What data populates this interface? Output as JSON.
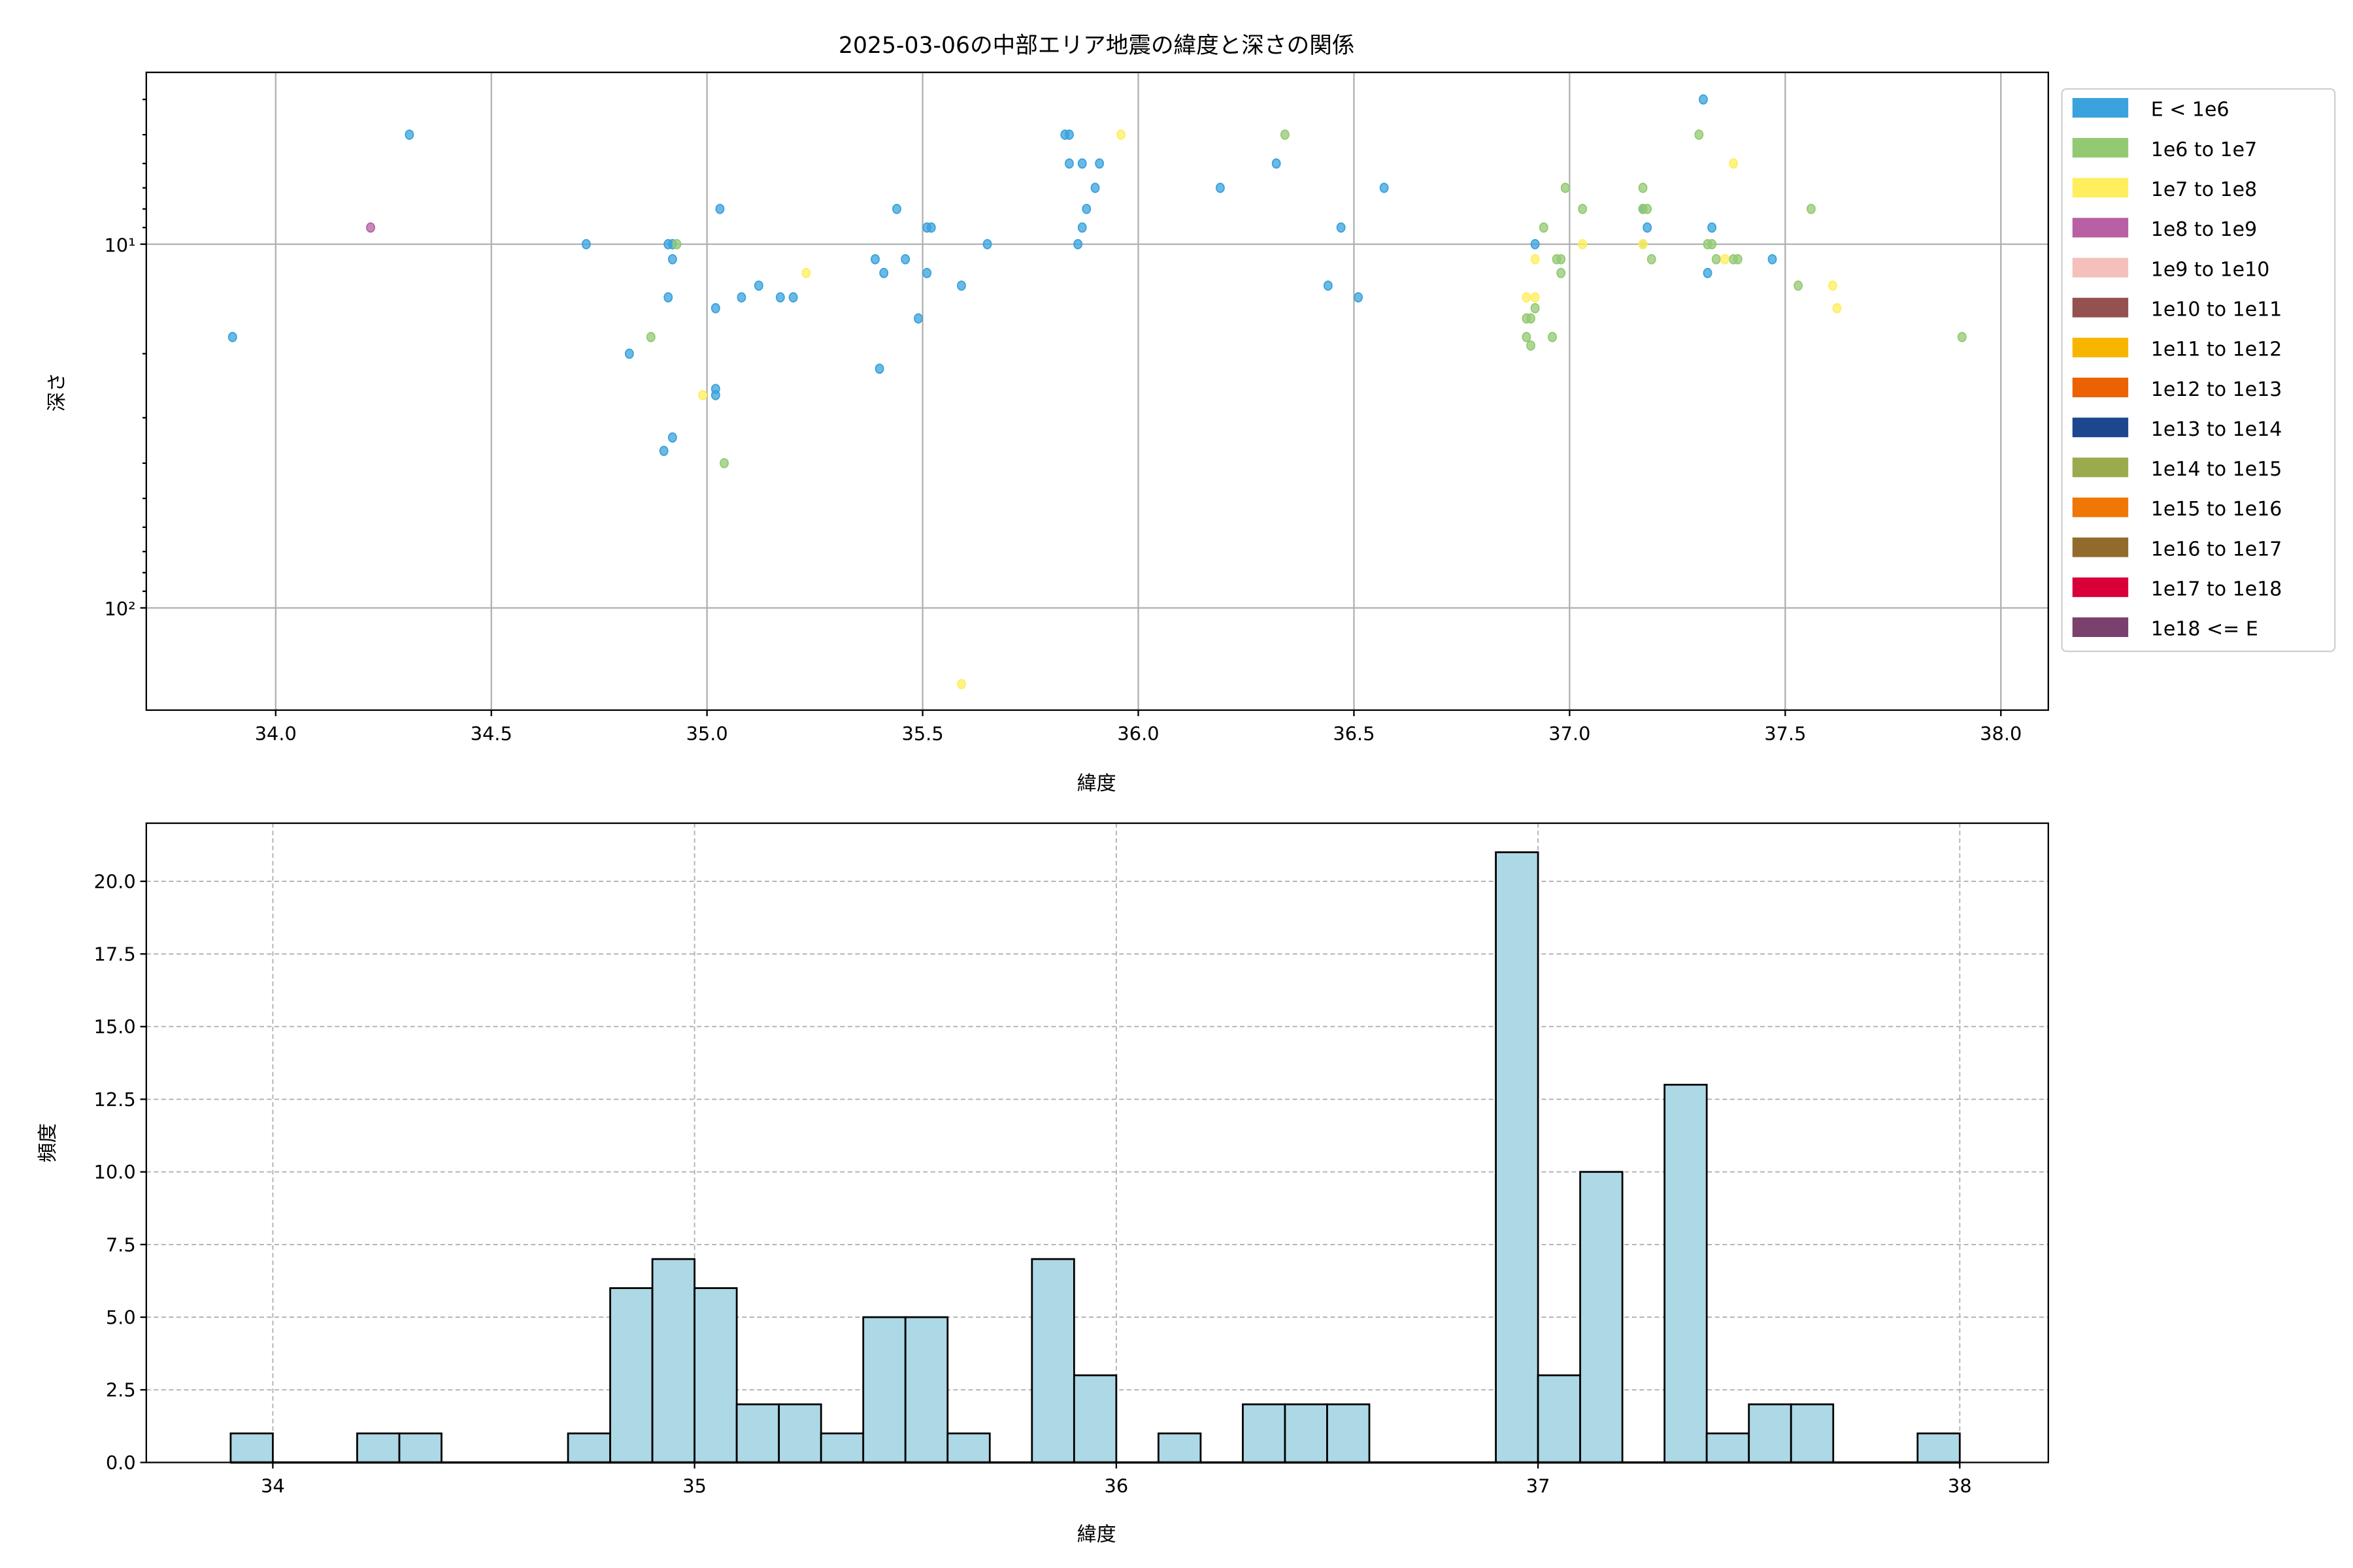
{
  "chart_data": [
    {
      "type": "scatter",
      "title": "2025-03-06の中部エリア地震の緯度と深さの関係",
      "xlabel": "緯度",
      "ylabel": "深さ",
      "xlim": [
        33.7,
        38.11
      ],
      "ylim": [
        191,
        3.37
      ],
      "yscale": "log",
      "y_inverted": true,
      "x_ticks": [
        "34.0",
        "34.5",
        "35.0",
        "35.5",
        "36.0",
        "36.5",
        "37.0",
        "37.5",
        "38.0"
      ],
      "y_ticks": [
        {
          "value": 10,
          "label": "10¹"
        },
        {
          "value": 100,
          "label": "10²"
        }
      ],
      "grid": true,
      "legend_placement": "outside-right",
      "series": [
        {
          "name": "E < 1e6",
          "color": "#3aa2dc",
          "points": [
            [
              33.9,
              18
            ],
            [
              34.31,
              5
            ],
            [
              34.72,
              10
            ],
            [
              34.82,
              20
            ],
            [
              34.91,
              10
            ],
            [
              34.92,
              10
            ],
            [
              34.92,
              11
            ],
            [
              34.91,
              14
            ],
            [
              34.9,
              37
            ],
            [
              34.92,
              34
            ],
            [
              35.03,
              8
            ],
            [
              35.02,
              15
            ],
            [
              35.02,
              25
            ],
            [
              35.02,
              26
            ],
            [
              35.08,
              14
            ],
            [
              35.12,
              13
            ],
            [
              35.17,
              14
            ],
            [
              35.2,
              14
            ],
            [
              35.39,
              11
            ],
            [
              35.41,
              12
            ],
            [
              35.4,
              22
            ],
            [
              35.44,
              8
            ],
            [
              35.46,
              11
            ],
            [
              35.49,
              16
            ],
            [
              35.51,
              9
            ],
            [
              35.52,
              9
            ],
            [
              35.51,
              12
            ],
            [
              35.59,
              13
            ],
            [
              35.65,
              10
            ],
            [
              35.83,
              5
            ],
            [
              35.84,
              5
            ],
            [
              35.84,
              6
            ],
            [
              35.87,
              6
            ],
            [
              35.91,
              6
            ],
            [
              35.9,
              7
            ],
            [
              35.88,
              8
            ],
            [
              35.87,
              9
            ],
            [
              35.86,
              10
            ],
            [
              36.19,
              7
            ],
            [
              36.32,
              6
            ],
            [
              36.44,
              13
            ],
            [
              36.51,
              14
            ],
            [
              36.47,
              9
            ],
            [
              36.57,
              7
            ],
            [
              36.92,
              10
            ],
            [
              37.17,
              8
            ],
            [
              37.18,
              9
            ],
            [
              37.33,
              9
            ],
            [
              37.32,
              12
            ],
            [
              37.31,
              4
            ],
            [
              37.47,
              11
            ]
          ]
        },
        {
          "name": "1e6 to 1e7",
          "color": "#93c973",
          "points": [
            [
              34.87,
              18
            ],
            [
              34.93,
              10
            ],
            [
              35.04,
              40
            ],
            [
              36.34,
              5
            ],
            [
              36.99,
              7
            ],
            [
              37.03,
              8
            ],
            [
              36.94,
              9
            ],
            [
              36.97,
              11
            ],
            [
              36.98,
              11
            ],
            [
              36.98,
              12
            ],
            [
              36.92,
              15
            ],
            [
              36.91,
              16
            ],
            [
              36.9,
              16
            ],
            [
              36.9,
              18
            ],
            [
              36.91,
              19
            ],
            [
              36.96,
              18
            ],
            [
              37.17,
              7
            ],
            [
              37.17,
              8
            ],
            [
              37.18,
              8
            ],
            [
              37.17,
              10
            ],
            [
              37.19,
              11
            ],
            [
              37.3,
              5
            ],
            [
              37.32,
              10
            ],
            [
              37.33,
              10
            ],
            [
              37.34,
              11
            ],
            [
              37.38,
              11
            ],
            [
              37.39,
              11
            ],
            [
              37.53,
              13
            ],
            [
              37.56,
              8
            ],
            [
              37.91,
              18
            ]
          ]
        },
        {
          "name": "1e7 to 1e8",
          "color": "#ffee5e",
          "points": [
            [
              34.99,
              26
            ],
            [
              35.23,
              12
            ],
            [
              35.59,
              162
            ],
            [
              35.96,
              5
            ],
            [
              36.92,
              11
            ],
            [
              36.9,
              14
            ],
            [
              36.92,
              14
            ],
            [
              37.03,
              10
            ],
            [
              37.17,
              10
            ],
            [
              37.36,
              11
            ],
            [
              37.38,
              6
            ],
            [
              37.61,
              13
            ],
            [
              37.62,
              15
            ]
          ]
        },
        {
          "name": "1e8 to 1e9",
          "color": "#b860a3",
          "points": [
            [
              34.22,
              9
            ]
          ]
        },
        {
          "name": "1e9 to 1e10",
          "color": "#f5c0bb",
          "points": []
        },
        {
          "name": "1e10 to 1e11",
          "color": "#955150",
          "points": []
        },
        {
          "name": "1e11 to 1e12",
          "color": "#f8b500",
          "points": []
        },
        {
          "name": "1e12 to 1e13",
          "color": "#ec6102",
          "points": []
        },
        {
          "name": "1e13 to 1e14",
          "color": "#1c478e",
          "points": []
        },
        {
          "name": "1e14 to 1e15",
          "color": "#9aab4d",
          "points": []
        },
        {
          "name": "1e15 to 1e16",
          "color": "#ef7705",
          "points": []
        },
        {
          "name": "1e16 to 1e17",
          "color": "#926b2c",
          "points": []
        },
        {
          "name": "1e17 to 1e18",
          "color": "#d9003a",
          "points": []
        },
        {
          "name": "1e18 <= E",
          "color": "#7a406e",
          "points": []
        }
      ]
    },
    {
      "type": "bar",
      "subtype": "histogram",
      "xlabel": "緯度",
      "ylabel": "頻度",
      "xlim": [
        33.7,
        38.21
      ],
      "ylim": [
        0,
        22
      ],
      "bin_width": 0.1,
      "bar_color": "#add8e6",
      "edge_color": "#000000",
      "grid": "dashed",
      "x_ticks": [
        "34",
        "35",
        "36",
        "37",
        "38"
      ],
      "y_ticks": [
        "0.0",
        "2.5",
        "5.0",
        "7.5",
        "10.0",
        "12.5",
        "15.0",
        "17.5",
        "20.0"
      ],
      "bins": [
        {
          "start": 33.9,
          "count": 1
        },
        {
          "start": 34.0,
          "count": 0
        },
        {
          "start": 34.1,
          "count": 0
        },
        {
          "start": 34.2,
          "count": 1
        },
        {
          "start": 34.3,
          "count": 1
        },
        {
          "start": 34.4,
          "count": 0
        },
        {
          "start": 34.5,
          "count": 0
        },
        {
          "start": 34.6,
          "count": 0
        },
        {
          "start": 34.7,
          "count": 1
        },
        {
          "start": 34.8,
          "count": 6
        },
        {
          "start": 34.9,
          "count": 7
        },
        {
          "start": 35.0,
          "count": 6
        },
        {
          "start": 35.1,
          "count": 2
        },
        {
          "start": 35.2,
          "count": 2
        },
        {
          "start": 35.3,
          "count": 1
        },
        {
          "start": 35.4,
          "count": 5
        },
        {
          "start": 35.5,
          "count": 5
        },
        {
          "start": 35.6,
          "count": 1
        },
        {
          "start": 35.7,
          "count": 0
        },
        {
          "start": 35.8,
          "count": 7
        },
        {
          "start": 35.9,
          "count": 3
        },
        {
          "start": 36.0,
          "count": 0
        },
        {
          "start": 36.1,
          "count": 1
        },
        {
          "start": 36.2,
          "count": 0
        },
        {
          "start": 36.3,
          "count": 2
        },
        {
          "start": 36.4,
          "count": 2
        },
        {
          "start": 36.5,
          "count": 2
        },
        {
          "start": 36.6,
          "count": 0
        },
        {
          "start": 36.7,
          "count": 0
        },
        {
          "start": 36.8,
          "count": 0
        },
        {
          "start": 36.9,
          "count": 21
        },
        {
          "start": 37.0,
          "count": 3
        },
        {
          "start": 37.1,
          "count": 10
        },
        {
          "start": 37.2,
          "count": 0
        },
        {
          "start": 37.3,
          "count": 13
        },
        {
          "start": 37.4,
          "count": 1
        },
        {
          "start": 37.5,
          "count": 2
        },
        {
          "start": 37.6,
          "count": 2
        },
        {
          "start": 37.7,
          "count": 0
        },
        {
          "start": 37.8,
          "count": 0
        },
        {
          "start": 37.9,
          "count": 1
        }
      ]
    }
  ]
}
